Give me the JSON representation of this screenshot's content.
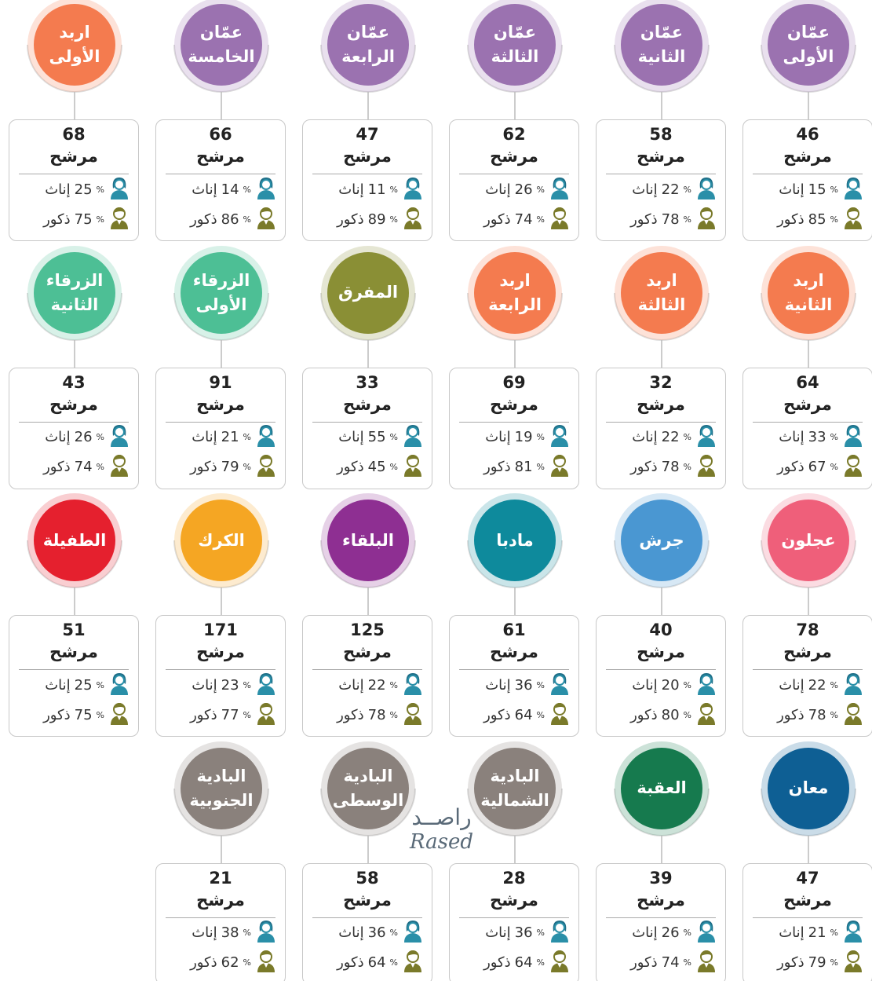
{
  "unit_label": "مرشح",
  "female_label": "إناث",
  "male_label": "ذكور",
  "percent_sign": "%",
  "watermark": {
    "arabic": "راصــد",
    "latin": "Rased"
  },
  "districts": [
    {
      "name_lines": [
        "عمّان",
        "الأولى"
      ],
      "candidates": 46,
      "female": 15,
      "male": 85,
      "color": "#9b72b0"
    },
    {
      "name_lines": [
        "عمّان",
        "الثانية"
      ],
      "candidates": 58,
      "female": 22,
      "male": 78,
      "color": "#9b72b0"
    },
    {
      "name_lines": [
        "عمّان",
        "الثالثة"
      ],
      "candidates": 62,
      "female": 26,
      "male": 74,
      "color": "#9b72b0"
    },
    {
      "name_lines": [
        "عمّان",
        "الرابعة"
      ],
      "candidates": 47,
      "female": 11,
      "male": 89,
      "color": "#9b72b0"
    },
    {
      "name_lines": [
        "عمّان",
        "الخامسة"
      ],
      "candidates": 66,
      "female": 14,
      "male": 86,
      "color": "#9b72b0"
    },
    {
      "name_lines": [
        "اربد",
        "الأولى"
      ],
      "candidates": 68,
      "female": 25,
      "male": 75,
      "color": "#f47b4f"
    },
    {
      "name_lines": [
        "اربد",
        "الثانية"
      ],
      "candidates": 64,
      "female": 33,
      "male": 67,
      "color": "#f47b4f"
    },
    {
      "name_lines": [
        "اربد",
        "الثالثة"
      ],
      "candidates": 32,
      "female": 22,
      "male": 78,
      "color": "#f47b4f"
    },
    {
      "name_lines": [
        "اربد",
        "الرابعة"
      ],
      "candidates": 69,
      "female": 19,
      "male": 81,
      "color": "#f47b4f"
    },
    {
      "name_lines": [
        "المفرق"
      ],
      "candidates": 33,
      "female": 55,
      "male": 45,
      "color": "#8a8f35"
    },
    {
      "name_lines": [
        "الزرقاء",
        "الأولى"
      ],
      "candidates": 91,
      "female": 21,
      "male": 79,
      "color": "#4dbf95"
    },
    {
      "name_lines": [
        "الزرقاء",
        "الثانية"
      ],
      "candidates": 43,
      "female": 26,
      "male": 74,
      "color": "#4dbf95"
    },
    {
      "name_lines": [
        "عجلون"
      ],
      "candidates": 78,
      "female": 22,
      "male": 78,
      "color": "#ef5f7a"
    },
    {
      "name_lines": [
        "جرش"
      ],
      "candidates": 40,
      "female": 20,
      "male": 80,
      "color": "#4a97d2"
    },
    {
      "name_lines": [
        "مادبا"
      ],
      "candidates": 61,
      "female": 36,
      "male": 64,
      "color": "#0e8a9c"
    },
    {
      "name_lines": [
        "البلقاء"
      ],
      "candidates": 125,
      "female": 22,
      "male": 78,
      "color": "#8e2f92"
    },
    {
      "name_lines": [
        "الكرك"
      ],
      "candidates": 171,
      "female": 23,
      "male": 77,
      "color": "#f5a623"
    },
    {
      "name_lines": [
        "الطفيلة"
      ],
      "candidates": 51,
      "female": 25,
      "male": 75,
      "color": "#e5202e"
    },
    {
      "name_lines": [
        "معان"
      ],
      "candidates": 47,
      "female": 21,
      "male": 79,
      "color": "#0e5f94"
    },
    {
      "name_lines": [
        "العقبة"
      ],
      "candidates": 39,
      "female": 26,
      "male": 74,
      "color": "#167a4e"
    },
    {
      "name_lines": [
        "البادية",
        "الشمالية"
      ],
      "candidates": 28,
      "female": 36,
      "male": 64,
      "color": "#8a817c"
    },
    {
      "name_lines": [
        "البادية",
        "الوسطى"
      ],
      "candidates": 58,
      "female": 36,
      "male": 64,
      "color": "#8a817c"
    },
    {
      "name_lines": [
        "البادية",
        "الجنوبية"
      ],
      "candidates": 21,
      "female": 38,
      "male": 62,
      "color": "#8a817c"
    }
  ]
}
